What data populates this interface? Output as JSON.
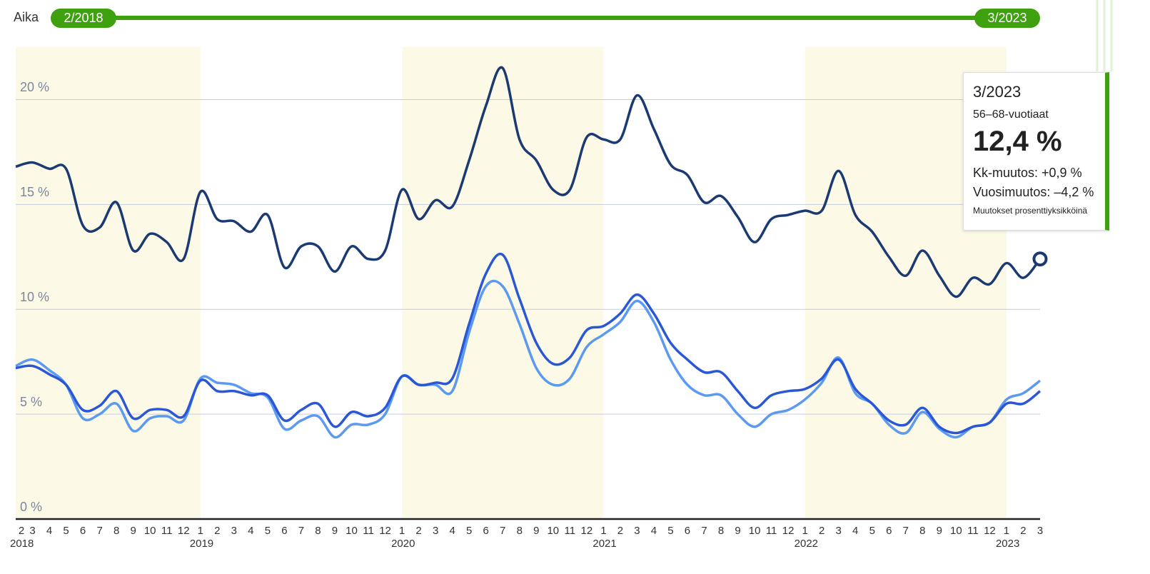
{
  "slider": {
    "label": "Aika",
    "start": "2/2018",
    "end": "3/2023"
  },
  "tooltip": {
    "date": "3/2023",
    "series": "56–68-vuotiaat",
    "value": "12,4 %",
    "monthly": "Kk-muutos: +0,9 %",
    "yearly": "Vuosimuutos: –4,2 %",
    "note": "Muutokset prosenttiyksikköinä"
  },
  "chart_data": {
    "type": "line",
    "categories": [
      2,
      3,
      4,
      5,
      6,
      7,
      8,
      9,
      10,
      11,
      12,
      1,
      2,
      3,
      4,
      5,
      6,
      7,
      8,
      9,
      10,
      11,
      12,
      1,
      2,
      3,
      4,
      5,
      6,
      7,
      8,
      9,
      10,
      11,
      12,
      1,
      2,
      3,
      4,
      5,
      6,
      7,
      8,
      9,
      10,
      11,
      12,
      1,
      2,
      3,
      4,
      5,
      6,
      7,
      8,
      9,
      10,
      11,
      12,
      1,
      2,
      3
    ],
    "years": [
      2018,
      null,
      null,
      null,
      null,
      null,
      null,
      null,
      null,
      null,
      null,
      2019,
      null,
      null,
      null,
      null,
      null,
      null,
      null,
      null,
      null,
      null,
      null,
      2020,
      null,
      null,
      null,
      null,
      null,
      null,
      null,
      null,
      null,
      null,
      null,
      2021,
      null,
      null,
      null,
      null,
      null,
      null,
      null,
      null,
      null,
      null,
      null,
      2022,
      null,
      null,
      null,
      null,
      null,
      null,
      null,
      null,
      null,
      null,
      null,
      2023,
      null,
      null
    ],
    "series": [
      {
        "color": "#1b3a73",
        "values": [
          16.8,
          17.0,
          16.7,
          16.7,
          14.0,
          13.9,
          15.1,
          12.8,
          13.6,
          13.2,
          12.4,
          15.6,
          14.3,
          14.2,
          13.7,
          14.5,
          12.0,
          13.0,
          13.0,
          11.8,
          13.0,
          12.4,
          12.8,
          15.7,
          14.3,
          15.2,
          14.9,
          17.1,
          19.7,
          21.5,
          18.1,
          17.1,
          15.7,
          15.7,
          18.2,
          18.1,
          18.1,
          20.2,
          18.6,
          16.9,
          16.4,
          15.1,
          15.4,
          14.4,
          13.2,
          14.3,
          14.5,
          14.7,
          14.7,
          16.6,
          14.5,
          13.7,
          12.5,
          11.6,
          12.8,
          11.6,
          10.6,
          11.5,
          11.2,
          12.2,
          11.5,
          12.4
        ]
      },
      {
        "color": "#2a57d6",
        "values": [
          7.2,
          7.3,
          6.9,
          6.4,
          5.2,
          5.4,
          6.1,
          4.8,
          5.2,
          5.2,
          4.9,
          6.6,
          6.1,
          6.1,
          5.9,
          5.9,
          4.7,
          5.2,
          5.5,
          4.4,
          5.1,
          4.9,
          5.3,
          6.8,
          6.4,
          6.5,
          6.7,
          9.3,
          11.7,
          12.6,
          10.5,
          8.4,
          7.4,
          7.7,
          9.0,
          9.2,
          9.8,
          10.7,
          9.8,
          8.4,
          7.6,
          7.0,
          7.0,
          6.1,
          5.3,
          5.9,
          6.1,
          6.2,
          6.7,
          7.6,
          6.2,
          5.5,
          4.7,
          4.5,
          5.3,
          4.4,
          4.1,
          4.4,
          4.6,
          5.5,
          5.5,
          6.1
        ]
      },
      {
        "color": "#5b9af0",
        "values": [
          7.3,
          7.6,
          7.1,
          6.4,
          4.8,
          5.0,
          5.5,
          4.2,
          4.8,
          4.9,
          4.7,
          6.7,
          6.5,
          6.4,
          6.0,
          5.8,
          4.3,
          4.7,
          4.9,
          3.9,
          4.5,
          4.5,
          5.0,
          6.8,
          6.4,
          6.4,
          6.1,
          8.9,
          11.1,
          11.1,
          9.3,
          7.2,
          6.4,
          6.7,
          8.2,
          8.8,
          9.4,
          10.4,
          9.4,
          7.6,
          6.4,
          5.9,
          5.9,
          5.0,
          4.4,
          5.0,
          5.2,
          5.7,
          6.5,
          7.7,
          6.0,
          5.5,
          4.5,
          4.1,
          5.1,
          4.3,
          3.9,
          4.4,
          4.6,
          5.7,
          6.0,
          6.6
        ]
      }
    ],
    "ylim": [
      0,
      22.5
    ],
    "yticks": [
      {
        "value": 0,
        "label": "0 %"
      },
      {
        "value": 5,
        "label": "5 %"
      },
      {
        "value": 10,
        "label": "10 %"
      },
      {
        "value": 15,
        "label": "15 %"
      },
      {
        "value": 20,
        "label": "20 %"
      }
    ],
    "grid": true,
    "band_color": "#fcfae6"
  }
}
